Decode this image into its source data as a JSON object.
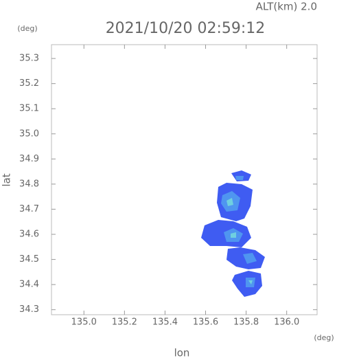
{
  "chart_data": {
    "type": "map",
    "title": "2021/10/20 02:59:12",
    "subtitle": "ALT(km) 2.0",
    "x_label": "lon",
    "y_label": "lat",
    "x_unit": "(deg)",
    "y_unit": "(deg)",
    "xlim": [
      134.84,
      136.15
    ],
    "ylim": [
      34.28,
      35.355
    ],
    "xticks": [
      {
        "value": 135,
        "label": "135.0"
      },
      {
        "value": 135.2,
        "label": "135.2"
      },
      {
        "value": 135.4,
        "label": "135.4"
      },
      {
        "value": 135.6,
        "label": "135.6"
      },
      {
        "value": 135.8,
        "label": "135.8"
      },
      {
        "value": 136,
        "label": "136.0"
      }
    ],
    "yticks": [
      34.3,
      34.4,
      34.5,
      34.6,
      34.7,
      34.8,
      34.9,
      {
        "value": 35,
        "label": "35.0"
      },
      35.1,
      35.2,
      35.3
    ],
    "grid": false
  }
}
